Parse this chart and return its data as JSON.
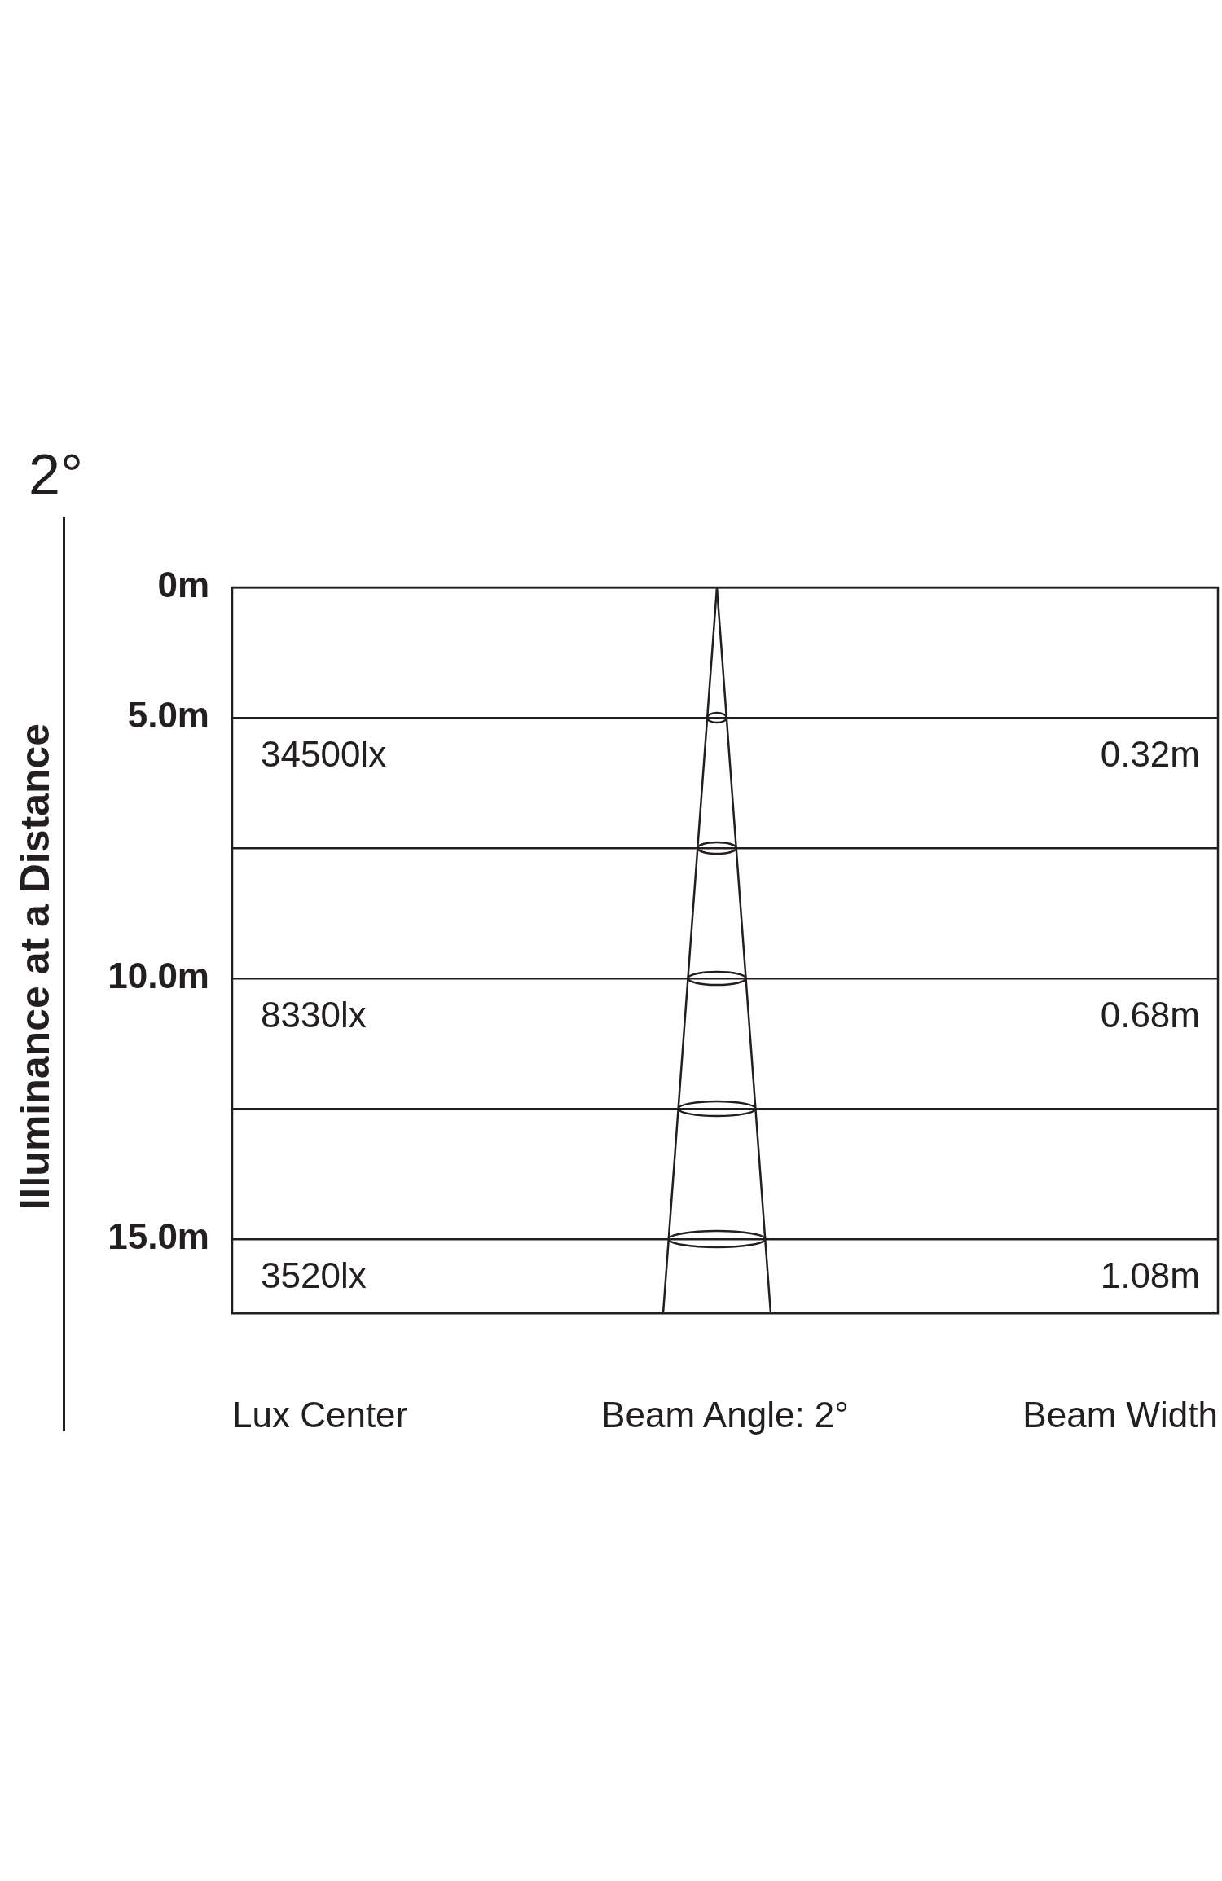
{
  "chart_data": {
    "type": "other",
    "title": "2°",
    "ylabel": "Illuminance at a Distance",
    "xlabel": "Beam Angle: 2°",
    "categories": [
      "0m",
      "5.0m",
      null,
      "10.0m",
      null,
      "15.0m"
    ],
    "series": [
      {
        "name": "Lux Center",
        "color": "#231f20",
        "values": [
          null,
          34500,
          null,
          8330,
          null,
          3520
        ],
        "value_labels": [
          null,
          "34500lx",
          null,
          "8330lx",
          null,
          "3520lx"
        ]
      },
      {
        "name": "Beam Width",
        "color": "#231f20",
        "values": [
          null,
          0.32,
          null,
          0.68,
          null,
          1.08
        ],
        "value_labels": [
          null,
          "0.32m",
          null,
          "0.68m",
          null,
          "1.08m"
        ]
      }
    ]
  }
}
